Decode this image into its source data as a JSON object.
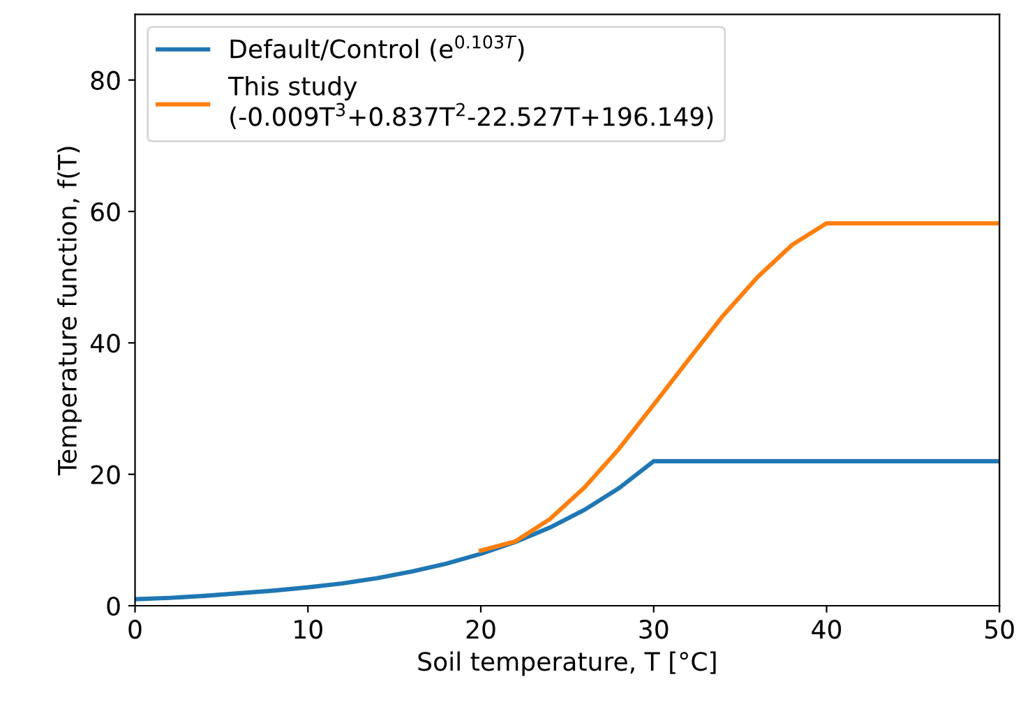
{
  "chart_data": {
    "type": "line",
    "xlabel": "Soil temperature, T [°C]",
    "ylabel": "Temperature function, f(T)",
    "xlim": [
      0,
      50
    ],
    "ylim": [
      0,
      90
    ],
    "xticks": [
      0,
      10,
      20,
      30,
      40,
      50
    ],
    "yticks": [
      0,
      20,
      40,
      60,
      80
    ],
    "grid": false,
    "legend": "top left",
    "marker": "none",
    "line_style": "solid",
    "series": [
      {
        "name": "Default/Control (e$^{0.103T}$)",
        "color": "#1f77b4",
        "x": [
          0,
          2,
          4,
          6,
          8,
          10,
          12,
          14,
          16,
          18,
          20,
          22,
          24,
          26,
          28,
          30,
          50
        ],
        "values": [
          1.0,
          1.2,
          1.5,
          1.9,
          2.3,
          2.8,
          3.4,
          4.2,
          5.2,
          6.4,
          7.9,
          9.7,
          11.9,
          14.6,
          17.9,
          22.0,
          22.0
        ]
      },
      {
        "name": "This study\n(-0.009T$^{3}$+0.837T$^{2}$-22.527T+196.149)",
        "color": "#ff7f0e",
        "x": [
          20,
          22,
          24,
          26,
          28,
          30,
          32,
          34,
          36,
          38,
          40,
          50
        ],
        "values": [
          8.4,
          9.8,
          13.2,
          18.0,
          23.9,
          30.6,
          37.4,
          44.1,
          50.0,
          54.9,
          58.2,
          58.2
        ]
      }
    ]
  }
}
